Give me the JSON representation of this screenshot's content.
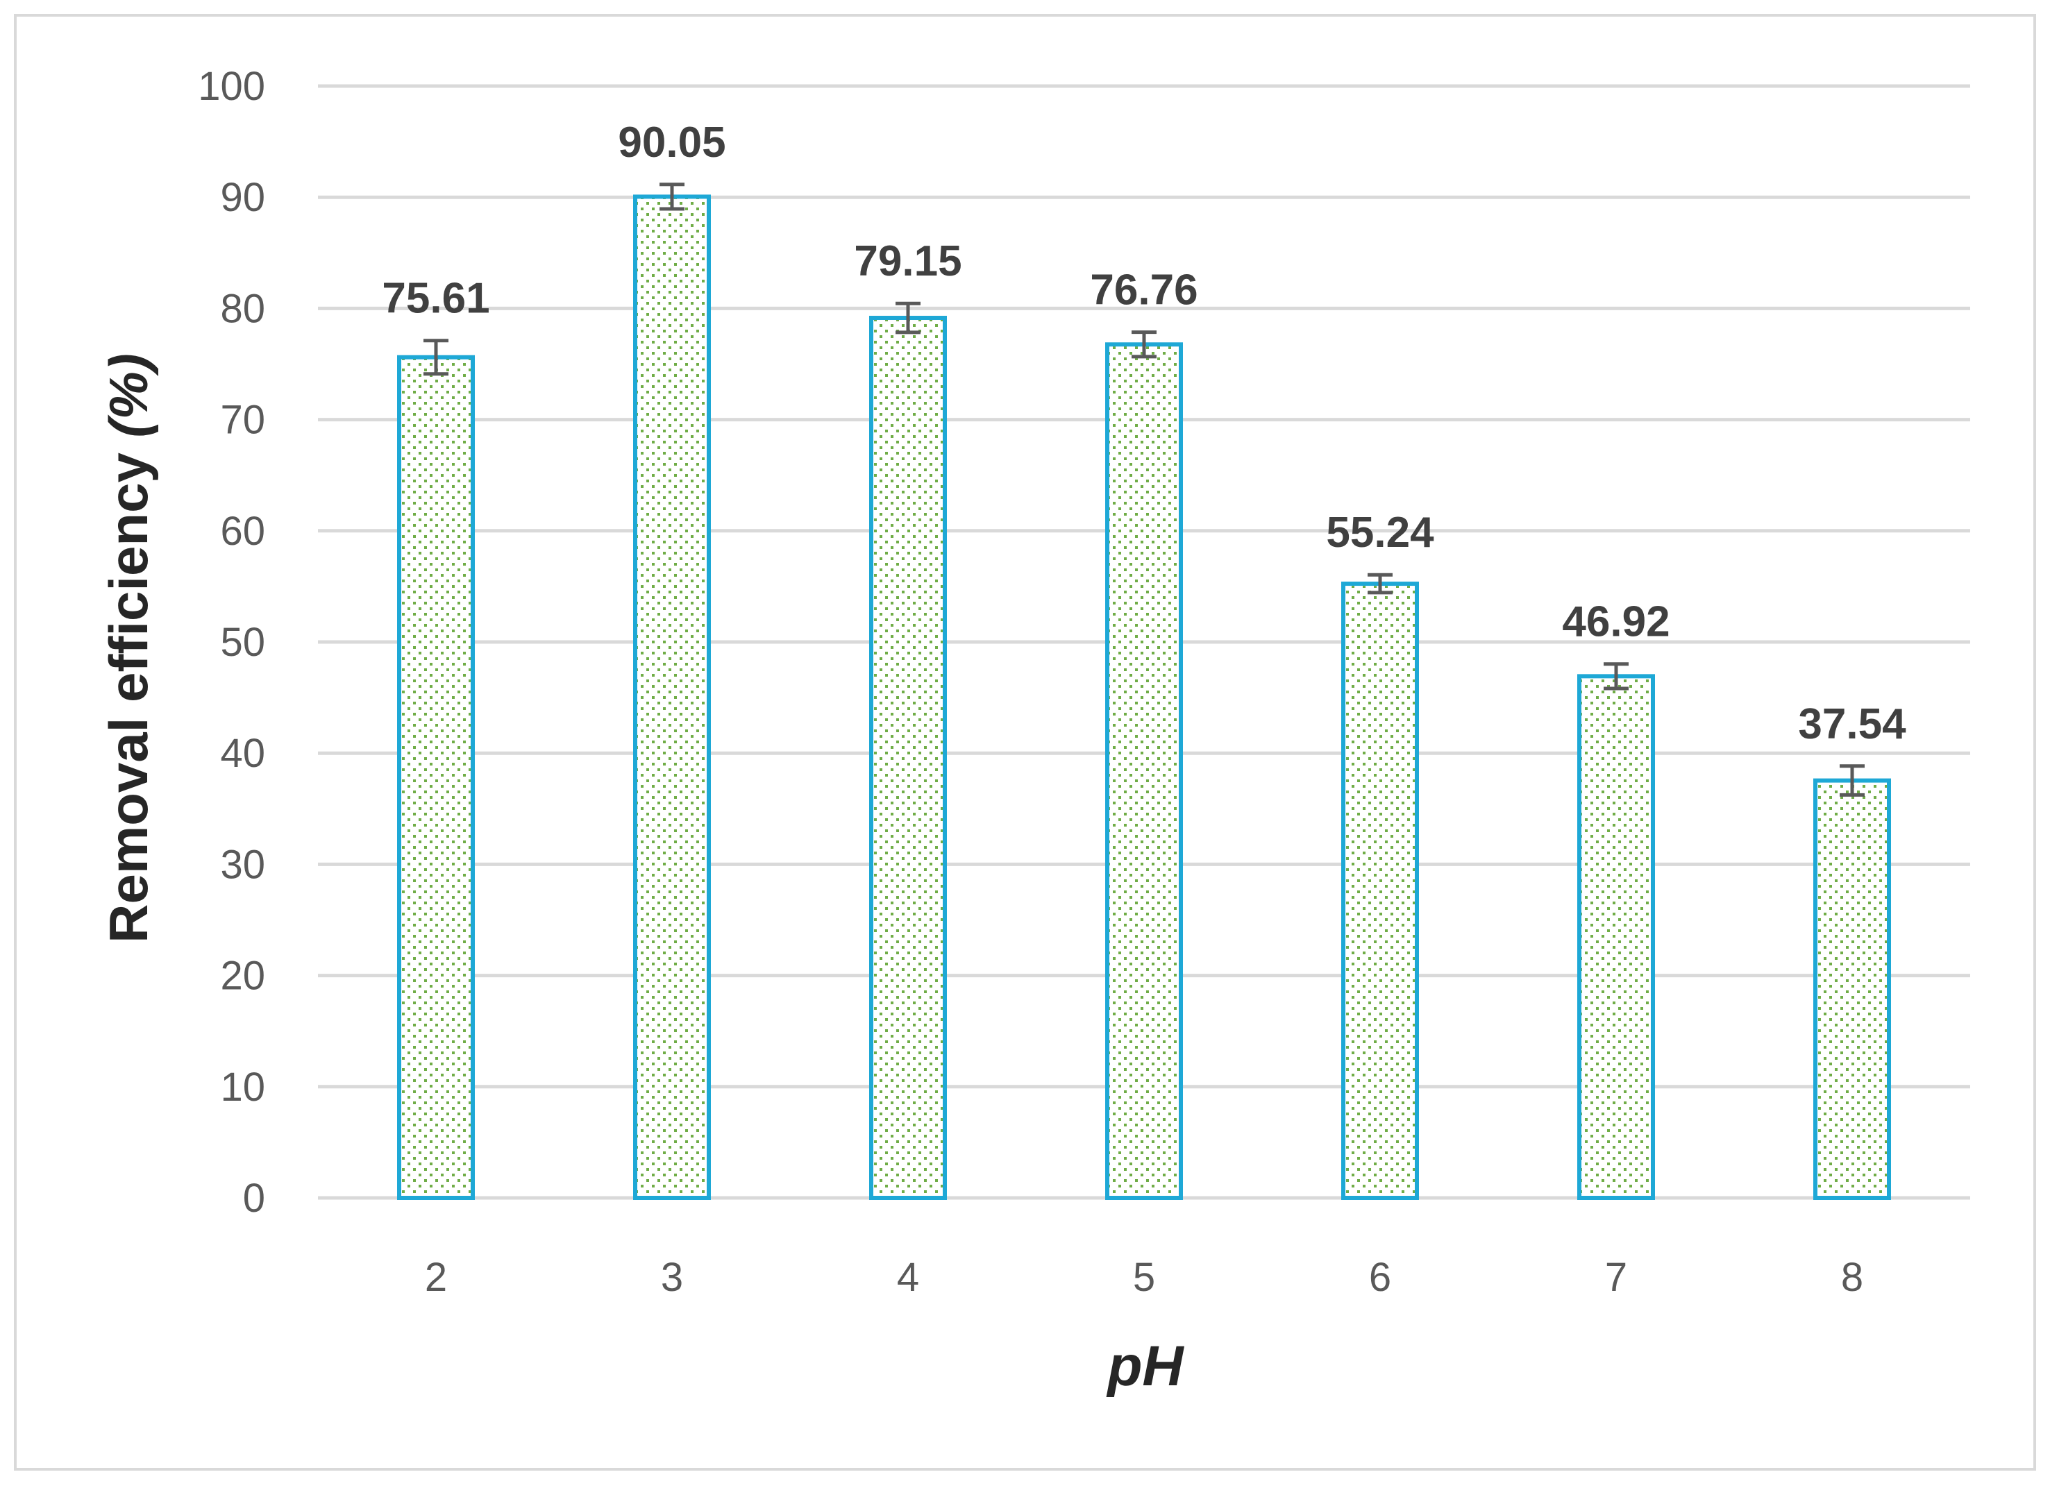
{
  "chart_data": {
    "type": "bar",
    "title": "",
    "xlabel": "pH",
    "ylabel_main": "Removal efficiency ",
    "ylabel_unit": "(%)",
    "categories": [
      "2",
      "3",
      "4",
      "5",
      "6",
      "7",
      "8"
    ],
    "values": [
      75.61,
      90.05,
      79.15,
      76.76,
      55.24,
      46.92,
      37.54
    ],
    "data_labels": [
      "75.61",
      "90.05",
      "79.15",
      "76.76",
      "55.24",
      "46.92",
      "37.54"
    ],
    "error": [
      1.5,
      1.1,
      1.3,
      1.1,
      0.8,
      1.1,
      1.3
    ],
    "ylim": [
      0,
      100
    ],
    "yticks": [
      "0",
      "10",
      "20",
      "30",
      "40",
      "50",
      "60",
      "70",
      "80",
      "90",
      "100"
    ],
    "grid": true,
    "legend": "none",
    "colors": {
      "bar_edge": "#1EA8D6",
      "bar_dot": "#70AD47",
      "grid": "#D9D9D9",
      "error_bar": "#595959",
      "frame": "#D9D9D9"
    }
  }
}
